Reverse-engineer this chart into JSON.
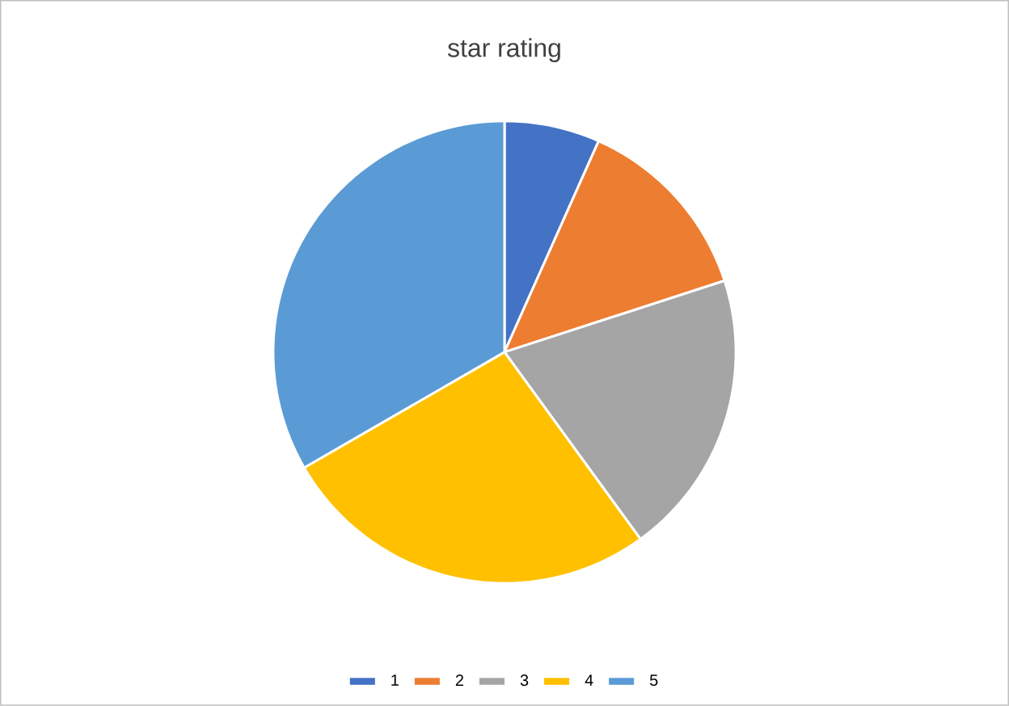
{
  "chart_data": {
    "type": "pie",
    "title": "star rating",
    "categories": [
      "1",
      "2",
      "3",
      "4",
      "5"
    ],
    "values": [
      6.67,
      13.33,
      20,
      26.67,
      33.33
    ],
    "colors": [
      "#4472c4",
      "#ed7d31",
      "#a5a5a5",
      "#ffc000",
      "#5b9bd5"
    ],
    "legend": "bottom"
  }
}
